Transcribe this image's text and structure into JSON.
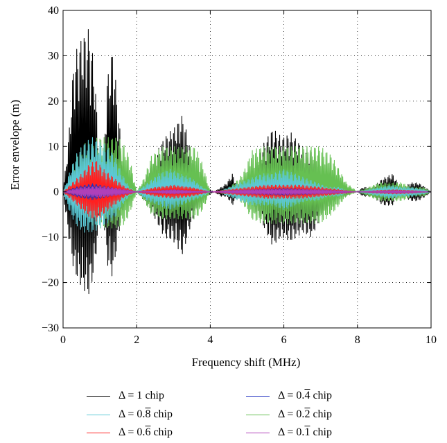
{
  "chart_data": {
    "type": "area",
    "xlabel": "Frequency shift (MHz)",
    "ylabel": "Error envelope (m)",
    "xlim": [
      0,
      10
    ],
    "ylim": [
      -30,
      40
    ],
    "xticks": [
      0,
      2,
      4,
      6,
      8,
      10
    ],
    "yticks": [
      -30,
      -20,
      -10,
      0,
      10,
      20,
      30,
      40
    ],
    "xtick_labels": [
      "0",
      "2",
      "4",
      "6",
      "8",
      "10"
    ],
    "ytick_labels": [
      "−30",
      "−20",
      "−10",
      "0",
      "10",
      "20",
      "30",
      "40"
    ],
    "grid": "dotted",
    "legend_position": "below",
    "series": [
      {
        "name": "Δ = 1 chip",
        "legend_prefix": "Δ = ",
        "legend_value": "1",
        "legend_overline": "",
        "legend_suffix": " chip",
        "color": "#000000",
        "envelope_x": [
          0,
          0.15,
          0.3,
          0.5,
          0.7,
          0.85,
          1.0,
          1.1,
          1.2,
          1.35,
          1.5,
          1.65,
          1.8,
          2.0,
          2.2,
          2.5,
          2.75,
          3.0,
          3.25,
          3.45,
          3.65,
          3.9,
          4.1,
          4.3,
          4.45,
          4.6,
          4.75,
          4.95,
          5.15,
          5.4,
          5.7,
          5.95,
          6.2,
          6.5,
          6.75,
          7.0,
          7.25,
          7.5,
          7.7,
          7.9,
          8.0,
          8.15,
          8.4,
          8.7,
          8.95,
          9.1,
          9.25,
          9.45,
          9.65,
          9.85,
          10.0
        ],
        "upper": [
          0,
          12,
          30,
          34,
          36,
          28,
          5,
          8,
          25,
          32,
          18,
          4,
          1,
          0,
          2,
          8,
          12,
          14,
          17,
          10,
          4,
          1,
          0,
          1,
          2,
          4,
          1,
          1,
          4,
          10,
          14,
          12,
          13,
          10,
          9,
          5,
          3,
          1,
          1,
          0,
          0,
          1,
          1,
          3,
          4,
          2,
          1,
          2,
          2,
          1,
          0
        ],
        "lower": [
          0,
          -10,
          -18,
          -21,
          -23,
          -18,
          -5,
          -6,
          -16,
          -19,
          -10,
          -3,
          -1,
          0,
          -2,
          -6,
          -10,
          -11,
          -14,
          -8,
          -4,
          -1,
          0,
          -1,
          -1,
          -3,
          -1,
          -1,
          -3,
          -7,
          -12,
          -10,
          -11,
          -9,
          -10,
          -6,
          -3,
          -1,
          -1,
          0,
          0,
          -1,
          -1,
          -3,
          -3,
          -1,
          -1,
          -2,
          -2,
          -1,
          0
        ]
      },
      {
        "name": "Δ = 0.̅ 8 chip",
        "legend_prefix": "Δ = 0.",
        "legend_value": "",
        "legend_overline": "8",
        "legend_suffix": " chip",
        "color": "#5bc8d6",
        "envelope_x": [
          0,
          0.2,
          0.4,
          0.6,
          0.8,
          1.0,
          1.2,
          1.4,
          1.6,
          1.8,
          2.0,
          2.3,
          2.6,
          2.9,
          3.2,
          3.5,
          3.8,
          4.0,
          4.2,
          4.5,
          4.8,
          5.1,
          5.4,
          5.7,
          6.0,
          6.3,
          6.6,
          6.9,
          7.2,
          7.5,
          7.8,
          8.0,
          8.3,
          8.6,
          8.9,
          9.2,
          9.5,
          9.8,
          10.0
        ],
        "upper": [
          0,
          5,
          9,
          11,
          12,
          11,
          10,
          8,
          4,
          1,
          0,
          2,
          4,
          5,
          4,
          3,
          1,
          0,
          0,
          1,
          2,
          3,
          4,
          4,
          5,
          4,
          3,
          2,
          1,
          1,
          0,
          0,
          0.5,
          1,
          1.5,
          1,
          1,
          0.5,
          0
        ],
        "lower": [
          0,
          -5,
          -8,
          -9,
          -9,
          -8,
          -7,
          -6,
          -3,
          -1,
          0,
          -2,
          -3,
          -4,
          -3,
          -2,
          -1,
          0,
          0,
          -1,
          -2,
          -3,
          -3,
          -3,
          -4,
          -3,
          -2,
          -2,
          -1,
          -1,
          0,
          0,
          -0.5,
          -1,
          -1.5,
          -1,
          -1,
          -0.5,
          0
        ]
      },
      {
        "name": "Δ = 0.6 chip",
        "legend_prefix": "Δ = 0.",
        "legend_value": "",
        "legend_overline": "6",
        "legend_suffix": " chip",
        "color": "#ff2020",
        "envelope_x": [
          0,
          0.25,
          0.5,
          0.7,
          0.9,
          1.1,
          1.4,
          1.7,
          2.0,
          2.5,
          3.0,
          3.5,
          4.0,
          4.5,
          5.0,
          5.5,
          6.0,
          6.5,
          7.0,
          7.5,
          8.0,
          8.5,
          9.0,
          9.5,
          10.0
        ],
        "upper": [
          0,
          2,
          4,
          6,
          7,
          5,
          3,
          1,
          0,
          1,
          1.5,
          1,
          0,
          0.5,
          1,
          1.5,
          1.5,
          1.5,
          1,
          0.5,
          0,
          0.3,
          0.5,
          0.3,
          0
        ],
        "lower": [
          0,
          -2,
          -4,
          -5.5,
          -6.5,
          -5,
          -3,
          -1,
          0,
          -1,
          -1.5,
          -1,
          0,
          -0.5,
          -1,
          -1.5,
          -1.5,
          -1.5,
          -1,
          -0.5,
          0,
          -0.3,
          -0.5,
          -0.3,
          0
        ]
      },
      {
        "name": "Δ = 0.4 chip",
        "legend_prefix": "Δ = 0.",
        "legend_value": "",
        "legend_overline": "4",
        "legend_suffix": " chip",
        "color": "#2030c0",
        "envelope_x": [
          0,
          0.4,
          0.8,
          1.2,
          1.6,
          2.0,
          3.0,
          4.0,
          5.0,
          6.0,
          7.0,
          8.0,
          9.0,
          10.0
        ],
        "upper": [
          0,
          1.2,
          1.8,
          1.2,
          0.6,
          0,
          0.5,
          0,
          0.5,
          0.8,
          0.5,
          0,
          0.3,
          0
        ],
        "lower": [
          0,
          -1.2,
          -1.8,
          -1.2,
          -0.6,
          0,
          -0.5,
          0,
          -0.5,
          -0.8,
          -0.5,
          0,
          -0.3,
          0
        ]
      },
      {
        "name": "Δ = 0.2 chip",
        "legend_prefix": "Δ = 0.",
        "legend_value": "",
        "legend_overline": "2",
        "legend_suffix": " chip",
        "color": "#66c052",
        "envelope_x": [
          0,
          0.15,
          0.35,
          0.6,
          0.9,
          1.2,
          1.5,
          1.7,
          1.85,
          2.0,
          2.2,
          2.4,
          2.7,
          3.0,
          3.3,
          3.6,
          3.8,
          4.0,
          4.2,
          4.5,
          4.8,
          5.0,
          5.1,
          5.4,
          5.8,
          6.2,
          6.6,
          7.0,
          7.3,
          7.5,
          7.7,
          8.0,
          8.3,
          8.6,
          8.9,
          9.2,
          9.5,
          9.8,
          10.0
        ],
        "upper": [
          0,
          3,
          8,
          11,
          12,
          12,
          12,
          10,
          6,
          0,
          3,
          8,
          10,
          10,
          10,
          10,
          6,
          0,
          0,
          1,
          3,
          6,
          9,
          10,
          10,
          10,
          10,
          10,
          8,
          5,
          2,
          0,
          1,
          2,
          2,
          2,
          1,
          1,
          0
        ],
        "lower": [
          0,
          -2,
          -5,
          -7,
          -8,
          -8,
          -8,
          -7,
          -4,
          0,
          -2,
          -5,
          -6,
          -6,
          -6,
          -6,
          -4,
          0,
          0,
          -1,
          -2,
          -4,
          -6,
          -7,
          -7,
          -7,
          -7,
          -7,
          -5,
          -3,
          -1,
          0,
          -1,
          -2,
          -2,
          -2,
          -1,
          -1,
          0
        ]
      },
      {
        "name": "Δ = 0.1 chip",
        "legend_prefix": "Δ = 0.",
        "legend_value": "",
        "legend_overline": "1",
        "legend_suffix": " chip",
        "color": "#b040b8",
        "envelope_x": [
          0,
          0.5,
          1.0,
          1.5,
          2.0,
          3.0,
          4.0,
          5.0,
          6.0,
          7.0,
          8.0,
          9.0,
          10.0
        ],
        "upper": [
          0,
          1,
          1.2,
          0.8,
          0,
          0.5,
          0,
          0.5,
          0.6,
          0.5,
          0,
          0.3,
          0
        ],
        "lower": [
          0,
          -1,
          -1.2,
          -0.8,
          0,
          -0.5,
          0,
          -0.5,
          -0.6,
          -0.5,
          0,
          -0.3,
          0
        ]
      }
    ],
    "draw_order": [
      0,
      4,
      1,
      2,
      3,
      5
    ]
  }
}
